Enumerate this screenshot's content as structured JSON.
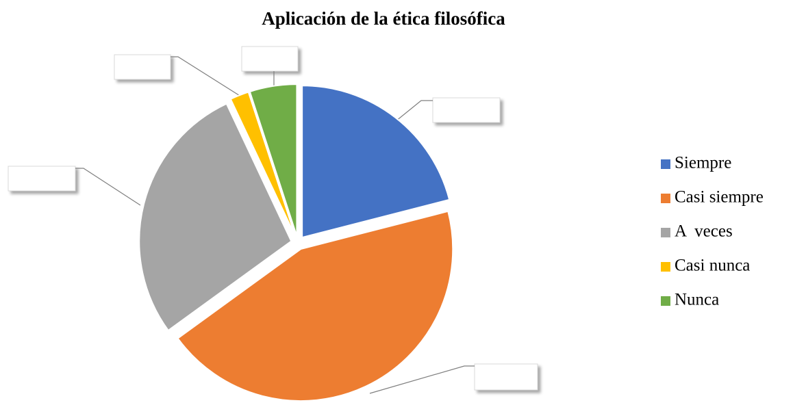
{
  "chart_data": {
    "type": "pie",
    "title": "Aplicación de la ética filosófica",
    "categories": [
      "Siempre",
      "Casi siempre",
      "A  veces",
      "Casi nunca",
      "Nunca"
    ],
    "values": [
      21,
      44,
      28,
      2,
      5
    ],
    "colors": [
      "#4472c4",
      "#ed7d31",
      "#a5a5a5",
      "#ffc000",
      "#70ad47"
    ],
    "legend": "right"
  }
}
